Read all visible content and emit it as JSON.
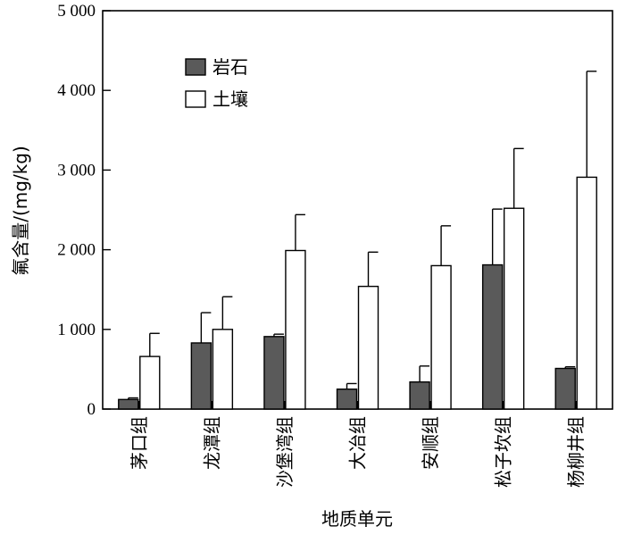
{
  "chart_data": {
    "type": "bar",
    "ylabel": "氟含量/(mg/kg)",
    "xlabel": "地质单元",
    "ylim": [
      0,
      5000
    ],
    "yticks": [
      0,
      1000,
      2000,
      3000,
      4000,
      5000
    ],
    "ytick_labels": [
      "0",
      "1 000",
      "2 000",
      "3 000",
      "4 000",
      "5 000"
    ],
    "categories": [
      "茅口组",
      "龙潭组",
      "沙堡湾组",
      "大冶组",
      "安顺组",
      "松子坎组",
      "杨柳井组"
    ],
    "legend_position": "top-left",
    "grid": false,
    "series": [
      {
        "name": "岩石",
        "color": "#5a5a5a",
        "values": [
          120,
          830,
          910,
          250,
          340,
          1810,
          510
        ],
        "errors": [
          20,
          380,
          30,
          70,
          200,
          700,
          20
        ]
      },
      {
        "name": "土壤",
        "color": "#ffffff",
        "values": [
          660,
          1000,
          1990,
          1540,
          1800,
          2520,
          2910
        ],
        "errors": [
          290,
          410,
          450,
          430,
          500,
          750,
          1330
        ]
      }
    ]
  }
}
